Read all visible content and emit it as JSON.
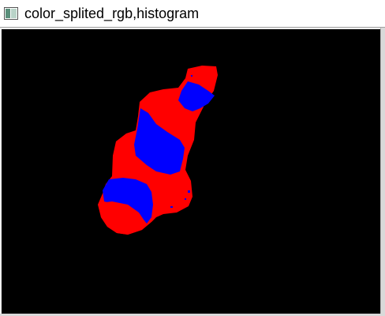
{
  "window": {
    "title": "color_splited_rgb,histogram",
    "icon": "image-window-icon"
  },
  "image": {
    "background_color": "#000000",
    "colors": {
      "primary": "#ff0000",
      "secondary": "#0000ff"
    }
  }
}
